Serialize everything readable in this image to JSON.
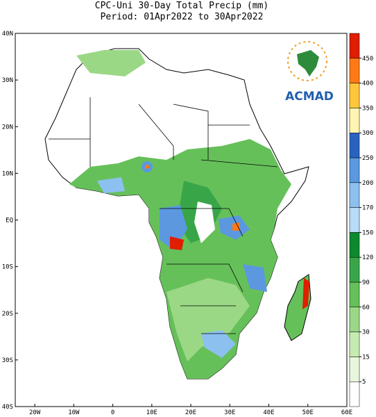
{
  "title": "CPC-Uni 30-Day Total Precip (mm)",
  "subtitle": "Period: 01Apr2022 to 30Apr2022",
  "lat_labels": [
    "40N",
    "30N",
    "20N",
    "10N",
    "EQ",
    "10S",
    "20S",
    "30S",
    "40S"
  ],
  "lon_labels": [
    "20W",
    "10W",
    "0",
    "10E",
    "20E",
    "30E",
    "40E",
    "50E",
    "60E"
  ],
  "logo": "ACMAD",
  "colorbar": {
    "ticks": [
      5,
      15,
      30,
      60,
      90,
      120,
      150,
      170,
      200,
      250,
      300,
      350,
      400,
      450
    ],
    "colors": [
      "#ffffff",
      "#e8f7dc",
      "#c6ebb0",
      "#9bd886",
      "#66c05a",
      "#38a648",
      "#0c8a2c",
      "#b7dcf7",
      "#8cc0ef",
      "#5b98df",
      "#2a62c0",
      "#fff4b2",
      "#ffc63c",
      "#ff7a16",
      "#e01e00"
    ]
  }
}
